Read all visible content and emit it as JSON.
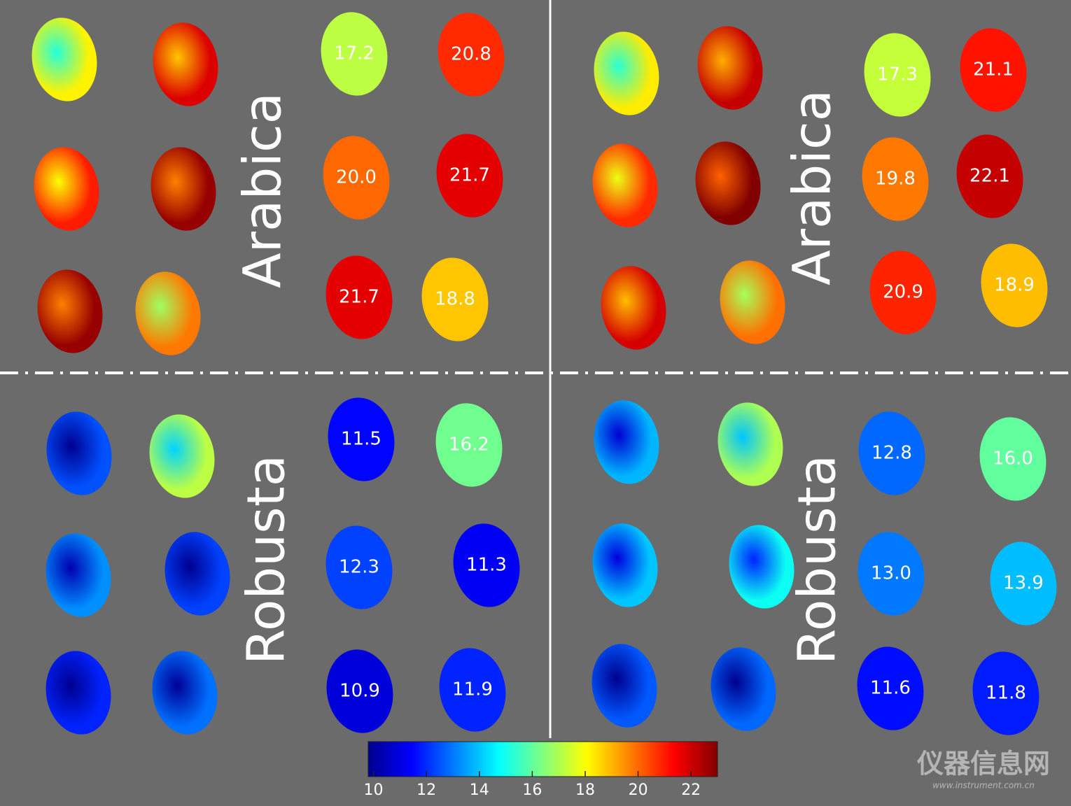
{
  "panels": [
    {
      "label": "Arabica",
      "values": [
        17.2,
        20.8,
        20.0,
        21.7,
        21.7,
        18.8
      ],
      "value_labels": [
        "17.2",
        "20.8",
        "20.0",
        "21.7",
        "21.7",
        "18.8"
      ]
    },
    {
      "label": "Arabica",
      "values": [
        17.3,
        21.1,
        19.8,
        22.1,
        20.9,
        18.9
      ],
      "value_labels": [
        "17.3",
        "21.1",
        "19.8",
        "22.1",
        "20.9",
        "18.9"
      ]
    },
    {
      "label": "Robusta",
      "values": [
        11.5,
        16.2,
        12.3,
        11.3,
        10.9,
        11.9
      ],
      "value_labels": [
        "11.5",
        "16.2",
        "12.3",
        "11.3",
        "10.9",
        "11.9"
      ]
    },
    {
      "label": "Robusta",
      "values": [
        12.8,
        16.0,
        13.0,
        13.9,
        11.6,
        11.8
      ],
      "value_labels": [
        "12.8",
        "16.0",
        "13.0",
        "13.9",
        "11.6",
        "11.8"
      ]
    }
  ],
  "colorbar": {
    "lim": [
      9.8,
      23
    ],
    "ticks": [
      10,
      12,
      14,
      16,
      18,
      20,
      22
    ]
  },
  "watermark": {
    "text": "仪器信息网",
    "url": "www.instrument.com.cn"
  }
}
